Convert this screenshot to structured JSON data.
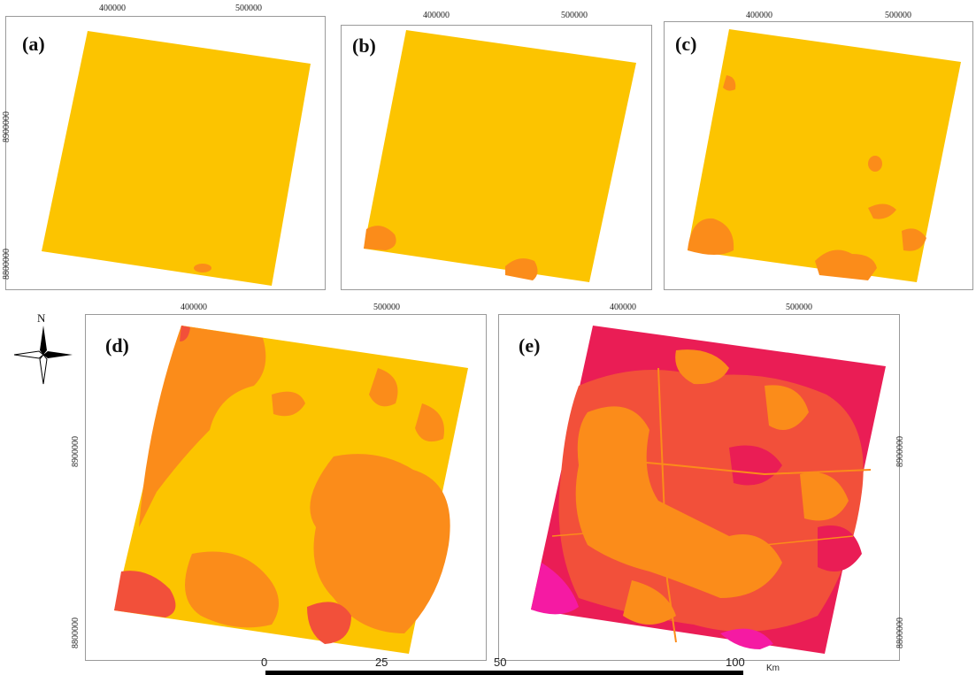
{
  "panels": {
    "a": {
      "label": "(a)",
      "x_ticks": [
        "400000",
        "500000"
      ],
      "y_ticks": [
        "8900000",
        "8800000"
      ]
    },
    "b": {
      "label": "(b)",
      "x_ticks": [
        "400000",
        "500000"
      ]
    },
    "c": {
      "label": "(c)",
      "x_ticks": [
        "400000",
        "500000"
      ]
    },
    "d": {
      "label": "(d)",
      "x_ticks": [
        "400000",
        "500000"
      ],
      "y_ticks": [
        "8900000",
        "8800000"
      ]
    },
    "e": {
      "label": "(e)",
      "x_ticks": [
        "400000",
        "500000"
      ],
      "y_ticks": [
        "8900000",
        "8800000"
      ]
    }
  },
  "north_arrow": {
    "label": "N"
  },
  "scale_bar": {
    "ticks": [
      "0",
      "25",
      "50",
      "100"
    ],
    "unit": "Km"
  },
  "colors": {
    "yellow": "#fcc400",
    "orange": "#fb8c1a",
    "red": "#f2503a",
    "crimson": "#ea1d55",
    "magenta": "#f51aa3"
  }
}
